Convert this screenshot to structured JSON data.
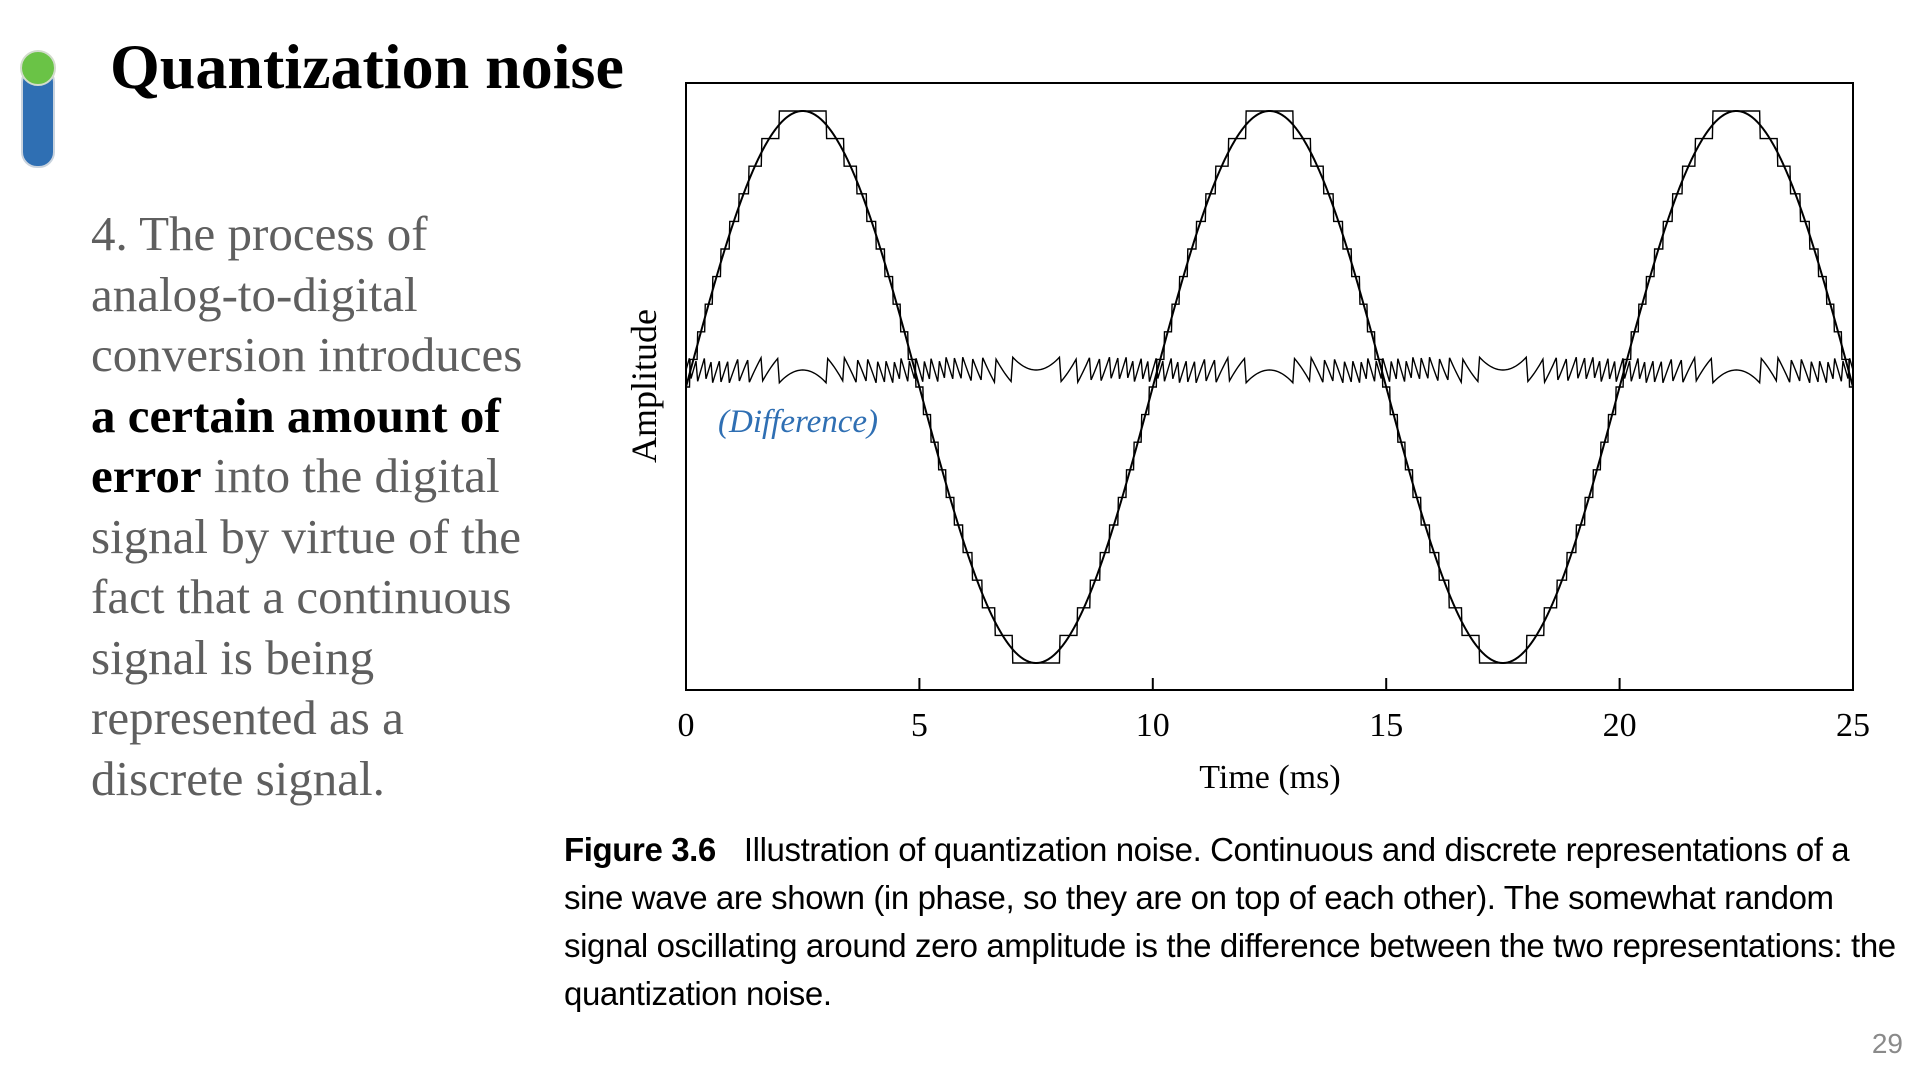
{
  "slide": {
    "title": "Quantization noise",
    "body_before": "4. The process of analog-to-digital conversion introduces ",
    "body_bold": "a certain amount of error",
    "body_after": " into the digital signal by virtue of the fact that a continuous signal is being represented as a discrete signal.",
    "caption_label": "Figure 3.6",
    "caption_text": "Illustration of quantization noise. Continuous and discrete representations of a sine wave are shown (in phase, so they are on top of each other). The somewhat random signal oscillating around zero amplitude is the difference between the two representations: the quantization noise.",
    "page_number": "29",
    "accent_colors": {
      "bar": "#2f6fb3",
      "dot": "#6ac346"
    }
  },
  "chart_data": {
    "type": "line",
    "title": "",
    "xlabel": "Time (ms)",
    "ylabel": "Amplitude",
    "xlim": [
      0,
      25
    ],
    "ylim": [
      -1,
      1
    ],
    "x_ticks": [
      0,
      5,
      10,
      15,
      20,
      25
    ],
    "x_tick_labels": [
      "0",
      "5",
      "10",
      "15",
      "20",
      "25"
    ],
    "grid": false,
    "annotation": "(Difference)",
    "annotation_color": "#2f6fb3",
    "series": [
      {
        "kind": "continuous",
        "function": "sine",
        "period_ms": 10,
        "phase": "in phase"
      },
      {
        "kind": "discrete",
        "function": "quantized sine",
        "levels": 21
      },
      {
        "kind": "difference",
        "around": 0
      }
    ]
  }
}
